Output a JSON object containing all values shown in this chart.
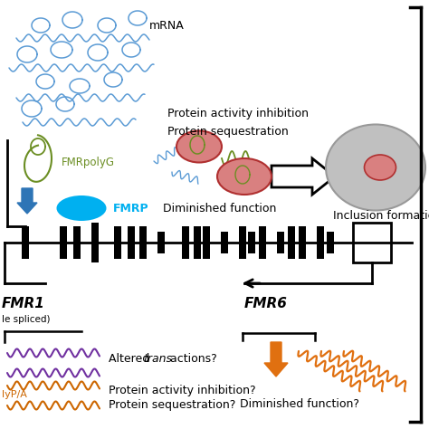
{
  "bg_color": "#ffffff",
  "mrna_color": "#5b9bd5",
  "fmrpolyg_color": "#6b8e23",
  "fmrp_color": "#00b0f0",
  "inclusion_fill": "#c0c0c0",
  "inclusion_edge": "#999999",
  "protein_ellipse_color": "#b03030",
  "protein_ellipse_fill": "#d98080",
  "arrow_blue_color": "#2e75b6",
  "arrow_orange_color": "#e07010",
  "gene_line_color": "#000000",
  "wavy_purple_color": "#7030a0",
  "wavy_orange_color": "#e07010",
  "text_color": "#000000",
  "title_fmr1": "FMR1",
  "title_fmr6": "FMR6",
  "label_mrna": "mRNA",
  "label_fmrpolyg": "FMRpolyG",
  "label_fmrp": "FMRP",
  "label_diminished": "Diminished function",
  "label_protein_activity": "Protein activity inhibition",
  "label_protein_seq": "Protein sequestration",
  "label_inclusion": "Inclusion formation",
  "label_altered_pre": "Altered ",
  "label_altered_italic": "trans",
  "label_altered_post": " actions?",
  "label_protein_activity2": "Protein activity inhibition?",
  "label_protein_seq2": "Protein sequestration?",
  "label_diminished2": "Diminished function?",
  "label_alt_spliced": "le spliced)",
  "label_polypa": "lyP/A"
}
